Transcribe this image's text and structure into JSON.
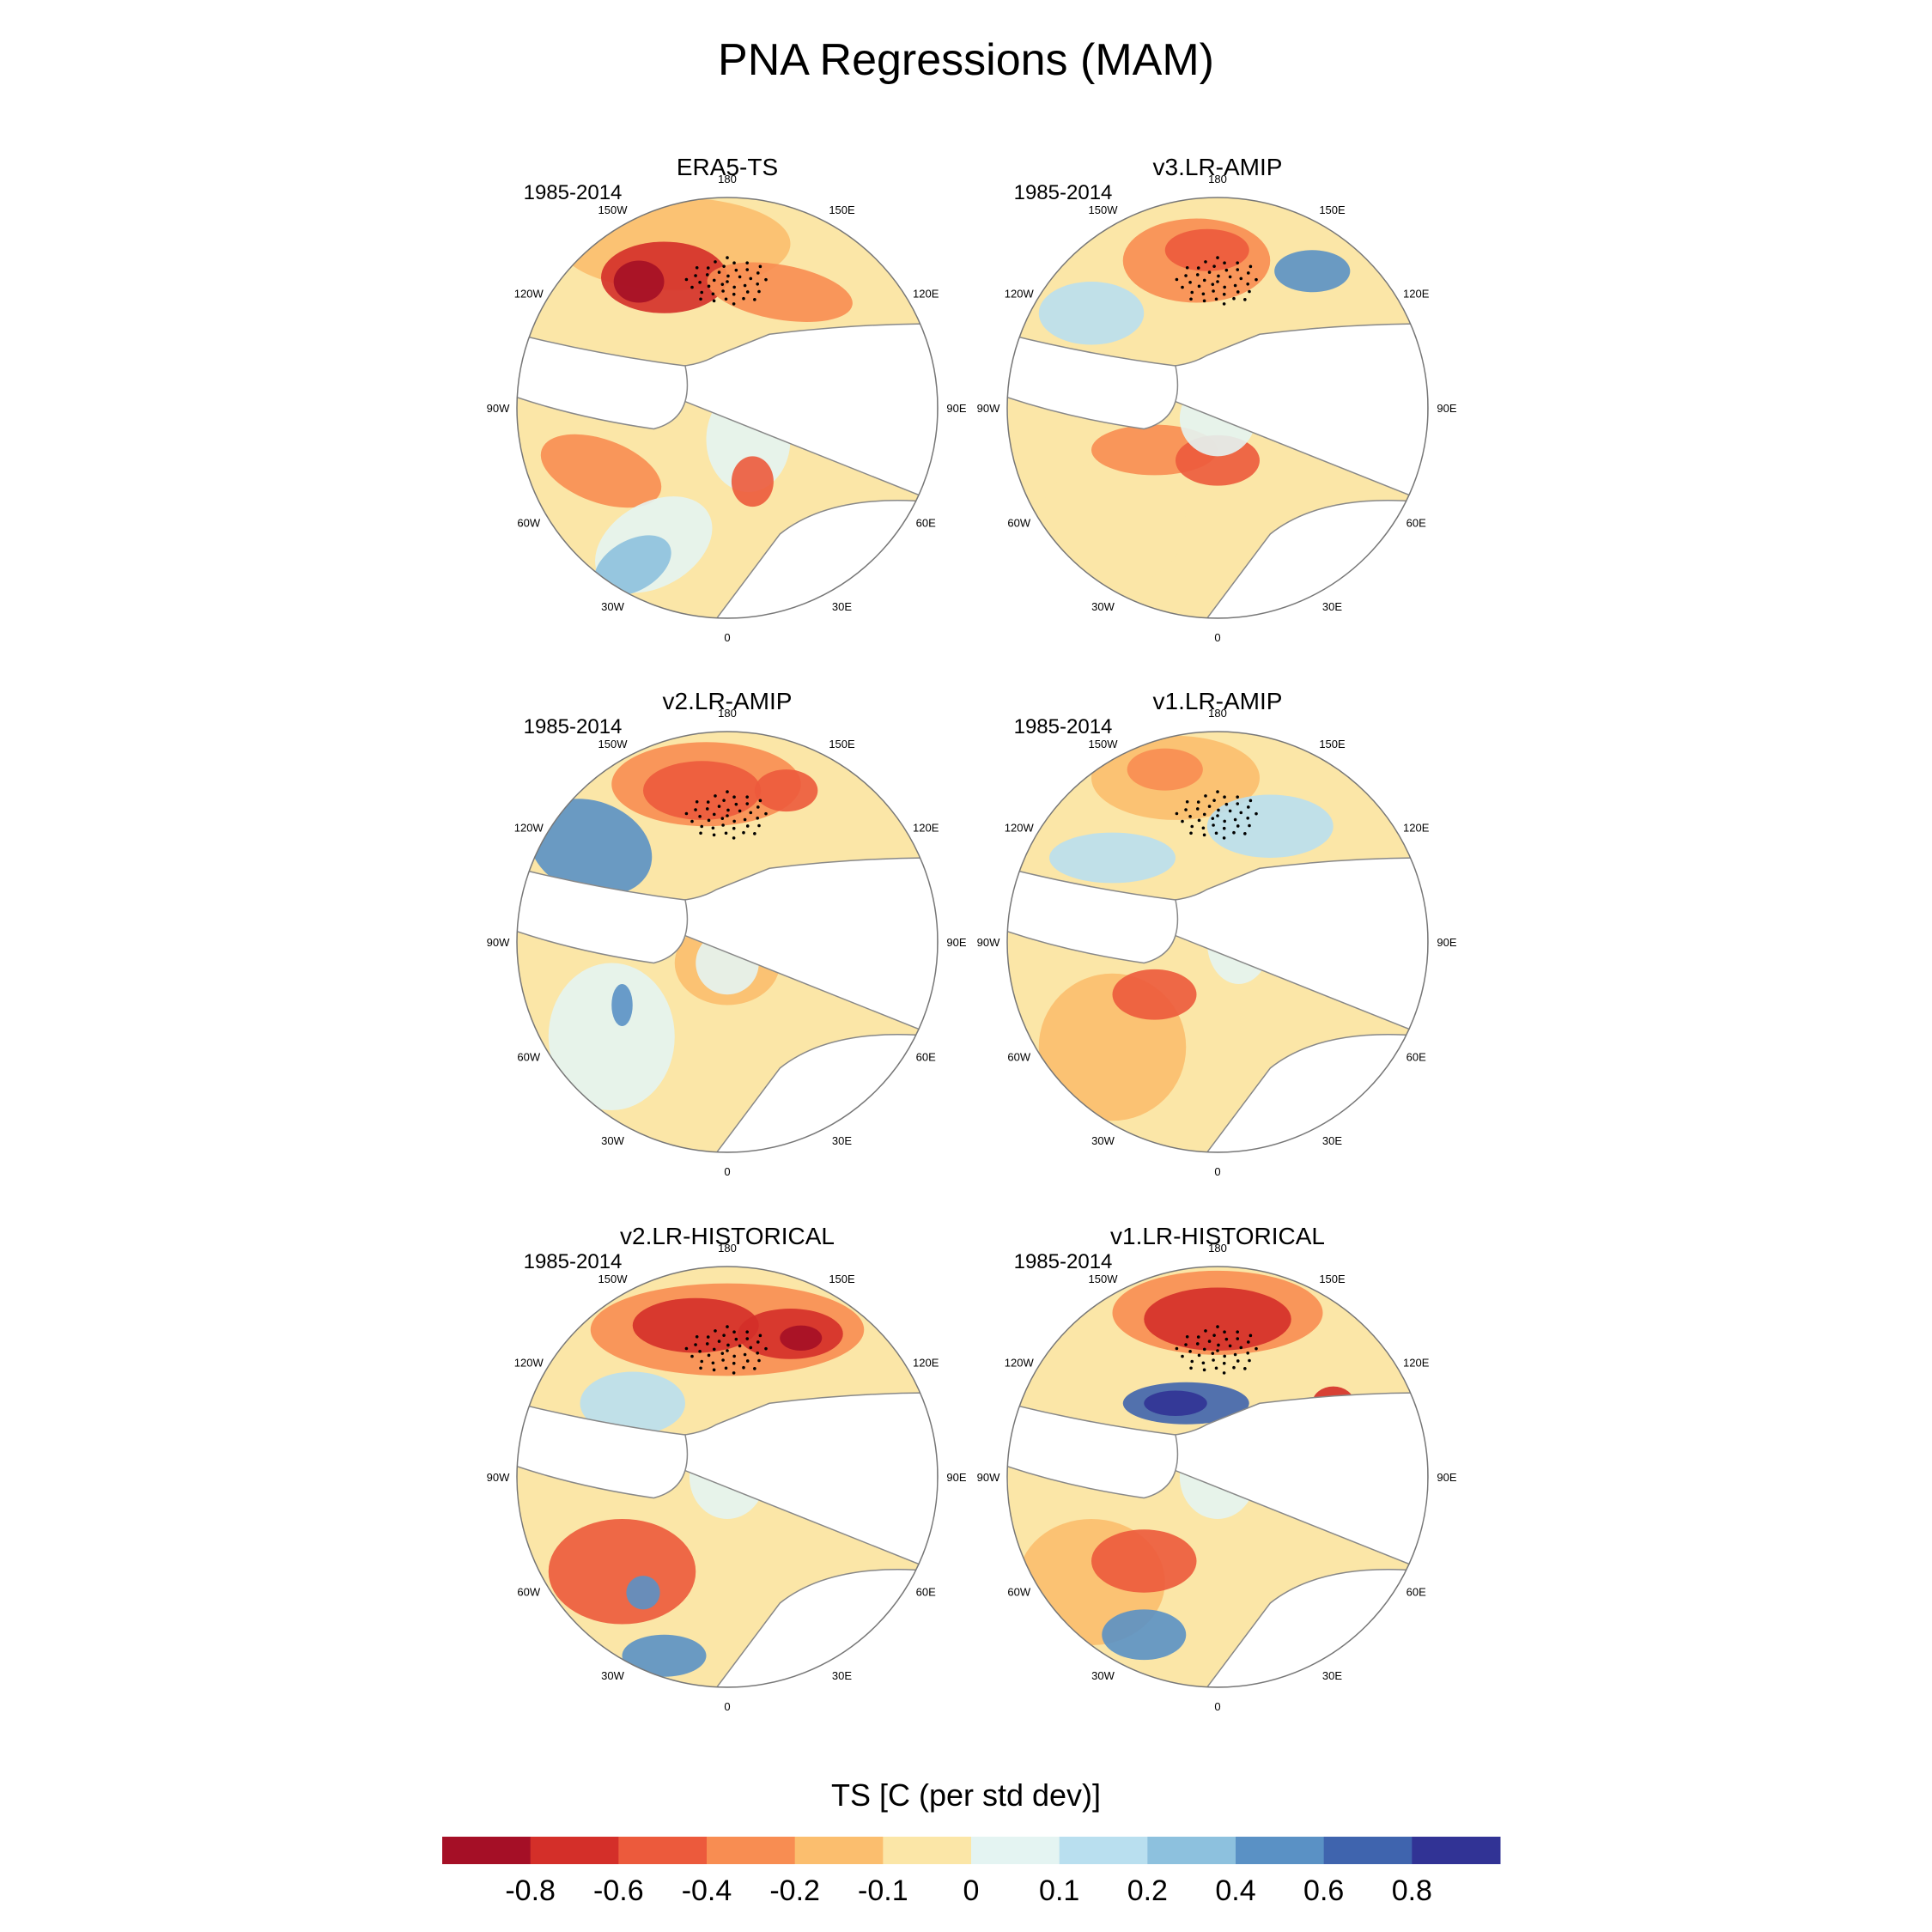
{
  "title": "PNA Regressions (MAM)",
  "panels": [
    {
      "title": "ERA5-TS",
      "period": "1985-2014",
      "pattern": "era5"
    },
    {
      "title": "v3.LR-AMIP",
      "period": "1985-2014",
      "pattern": "v3amip"
    },
    {
      "title": "v2.LR-AMIP",
      "period": "1985-2014",
      "pattern": "v2amip"
    },
    {
      "title": "v1.LR-AMIP",
      "period": "1985-2014",
      "pattern": "v1amip"
    },
    {
      "title": "v2.LR-HISTORICAL",
      "period": "1985-2014",
      "pattern": "v2hist"
    },
    {
      "title": "v1.LR-HISTORICAL",
      "period": "1985-2014",
      "pattern": "v1hist"
    }
  ],
  "lon_labels": [
    "180",
    "150E",
    "120E",
    "90E",
    "60E",
    "30E",
    "0",
    "30W",
    "60W",
    "90W",
    "120W",
    "150W"
  ],
  "colorbar": {
    "title": "TS [C (per std dev)]",
    "ticks": [
      "-0.8",
      "-0.6",
      "-0.4",
      "-0.2",
      "-0.1",
      "0",
      "0.1",
      "0.2",
      "0.4",
      "0.6",
      "0.8"
    ],
    "colors": [
      "#a50f26",
      "#d42f29",
      "#ec5a3c",
      "#f88d52",
      "#fbbe6e",
      "#fbe6a7",
      "#e4f4f2",
      "#b9dfef",
      "#8dc1de",
      "#5a91c5",
      "#3f64ae",
      "#313395"
    ]
  }
}
